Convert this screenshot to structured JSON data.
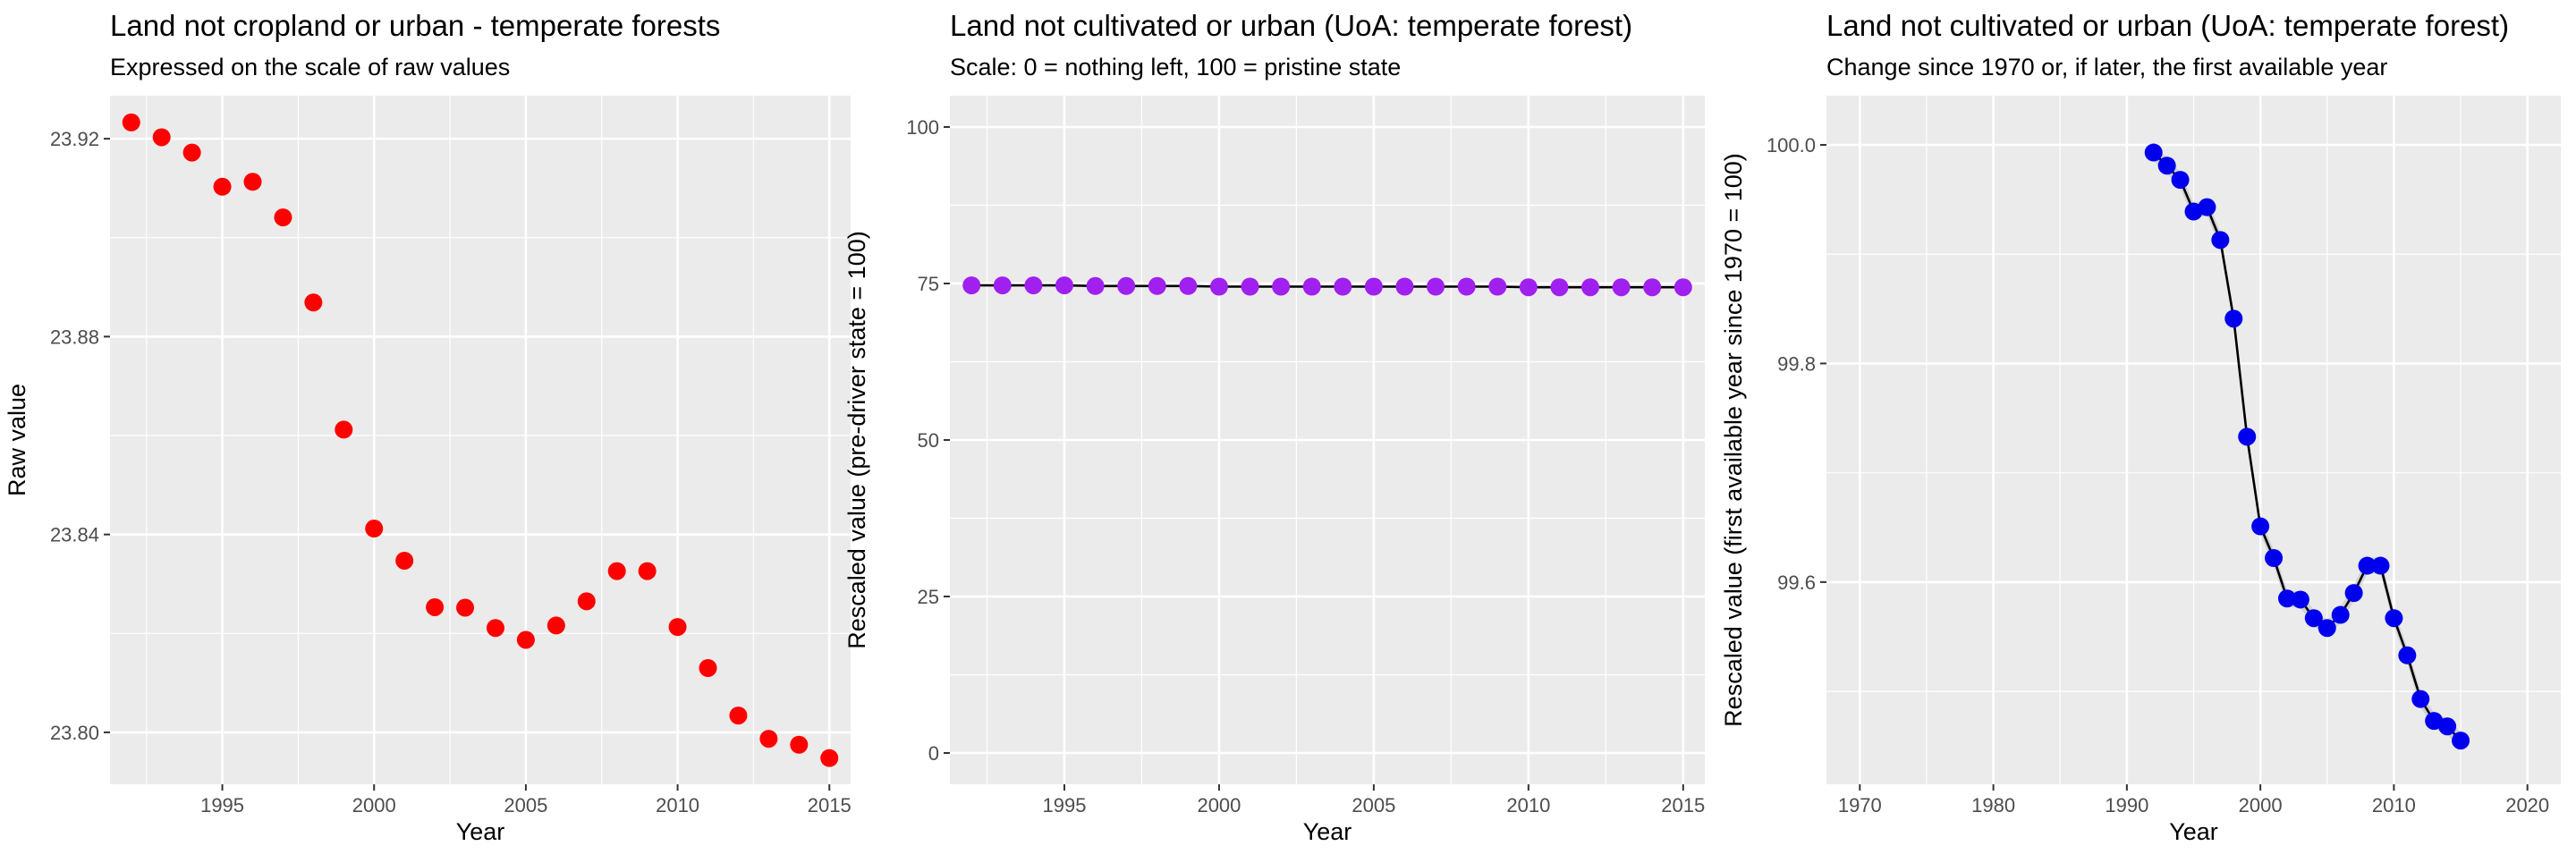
{
  "chart_data": [
    {
      "type": "scatter",
      "title": "Land not cropland or urban - temperate forests",
      "subtitle": "Expressed on the scale of raw values",
      "xlabel": "Year",
      "ylabel": "Raw value",
      "xlim": [
        1991.3,
        2015.7
      ],
      "ylim": [
        23.7895,
        23.9287
      ],
      "xticks": [
        1995,
        2000,
        2005,
        2010,
        2015
      ],
      "yticks": [
        23.8,
        23.84,
        23.88,
        23.92
      ],
      "ytick_labels": [
        "23.80",
        "23.84",
        "23.88",
        "23.92"
      ],
      "grid": true,
      "point_color": "#ff0000",
      "show_line": false,
      "show_band": false,
      "x": [
        1992,
        1993,
        1994,
        1995,
        1996,
        1997,
        1998,
        1999,
        2000,
        2001,
        2002,
        2003,
        2004,
        2005,
        2006,
        2007,
        2008,
        2009,
        2010,
        2011,
        2012,
        2013,
        2014,
        2015
      ],
      "y": [
        23.9233,
        23.9203,
        23.9172,
        23.9103,
        23.9113,
        23.9041,
        23.8869,
        23.8612,
        23.8412,
        23.8347,
        23.8253,
        23.8252,
        23.8211,
        23.8187,
        23.8216,
        23.8265,
        23.8326,
        23.8326,
        23.8213,
        23.813,
        23.8034,
        23.7987,
        23.7975,
        23.7948
      ]
    },
    {
      "type": "scatter",
      "title": "Land not cultivated or urban (UoA: temperate forest)",
      "subtitle": "Scale: 0 = nothing left, 100 = pristine state",
      "xlabel": "Year",
      "ylabel": "Rescaled value (pre-driver state = 100)",
      "xlim": [
        1991.3,
        2015.7
      ],
      "ylim": [
        -5,
        105
      ],
      "xticks": [
        1995,
        2000,
        2005,
        2010,
        2015
      ],
      "yticks": [
        0,
        25,
        50,
        75,
        100
      ],
      "ytick_labels": [
        "0",
        "25",
        "50",
        "75",
        "100"
      ],
      "grid": true,
      "point_color": "#a020f0",
      "show_line": true,
      "line_color": "#000000",
      "show_band": false,
      "x": [
        1992,
        1993,
        1994,
        1995,
        1996,
        1997,
        1998,
        1999,
        2000,
        2001,
        2002,
        2003,
        2004,
        2005,
        2006,
        2007,
        2008,
        2009,
        2010,
        2011,
        2012,
        2013,
        2014,
        2015
      ],
      "y": [
        74.7,
        74.7,
        74.7,
        74.7,
        74.6,
        74.6,
        74.6,
        74.6,
        74.5,
        74.5,
        74.5,
        74.5,
        74.5,
        74.5,
        74.5,
        74.5,
        74.5,
        74.5,
        74.4,
        74.4,
        74.4,
        74.4,
        74.4,
        74.4
      ]
    },
    {
      "type": "scatter",
      "title": "Land not cultivated or urban (UoA: temperate forest)",
      "subtitle": "Change since 1970 or, if later, the first available year",
      "xlabel": "Year",
      "ylabel": "Rescaled value (first available year since 1970 = 100)",
      "xlim": [
        1967.5,
        2022.5
      ],
      "ylim": [
        99.415,
        100.045
      ],
      "xticks": [
        1970,
        1980,
        1990,
        2000,
        2010,
        2020
      ],
      "yticks": [
        99.6,
        99.8,
        100.0
      ],
      "ytick_labels": [
        "99.6",
        "99.8",
        "100.0"
      ],
      "grid": true,
      "point_color": "#0000ee",
      "show_line": true,
      "line_color": "#000000",
      "show_band": true,
      "band_color": "#bdbdbd",
      "x": [
        1992,
        1993,
        1994,
        1995,
        1996,
        1997,
        1998,
        1999,
        2000,
        2001,
        2002,
        2003,
        2004,
        2005,
        2006,
        2007,
        2008,
        2009,
        2010,
        2011,
        2012,
        2013,
        2014,
        2015
      ],
      "y": [
        99.993,
        99.981,
        99.968,
        99.939,
        99.943,
        99.913,
        99.841,
        99.733,
        99.651,
        99.622,
        99.585,
        99.584,
        99.567,
        99.558,
        99.57,
        99.59,
        99.615,
        99.615,
        99.567,
        99.533,
        99.493,
        99.473,
        99.468,
        99.455
      ]
    }
  ]
}
